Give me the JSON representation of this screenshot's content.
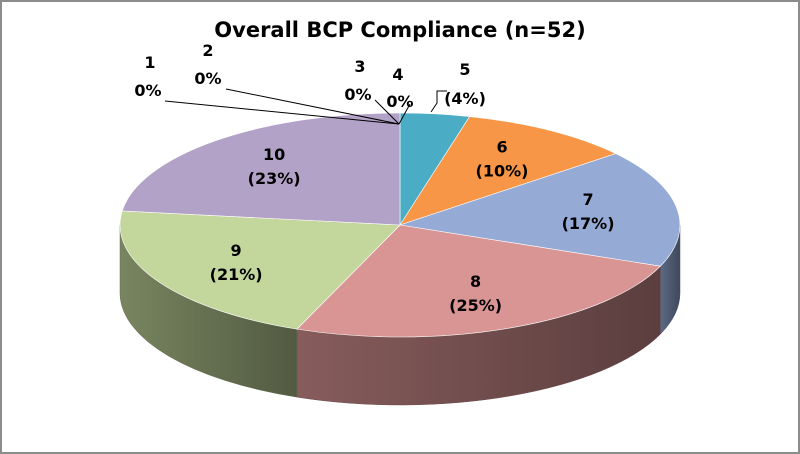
{
  "chart_data": {
    "type": "pie",
    "title": "Overall BCP Compliance (n=52)",
    "categories": [
      "1",
      "2",
      "3",
      "4",
      "5",
      "6",
      "7",
      "8",
      "9",
      "10"
    ],
    "values": [
      0,
      0,
      0,
      0,
      4,
      10,
      17,
      25,
      21,
      23
    ],
    "value_labels": [
      "0%",
      "0%",
      "0%",
      "0%",
      "(4%)",
      "(10%)",
      "(17%)",
      "(25%)",
      "(21%)",
      "(23%)"
    ],
    "colors": [
      "#4f81bd",
      "#c0504d",
      "#9bbb59",
      "#8064a2",
      "#4bacc6",
      "#f79646",
      "#95abd6",
      "#d99494",
      "#c3d69b",
      "#b3a2c7"
    ],
    "style": "3d",
    "legend": "none"
  }
}
